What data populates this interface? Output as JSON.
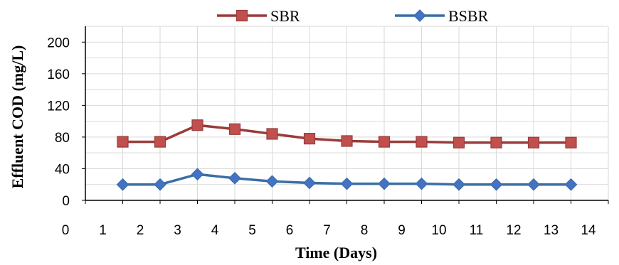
{
  "chart_data": {
    "type": "line",
    "title": "",
    "xlabel": "Time (Days)",
    "ylabel": "Effluent COD (mg/L)",
    "xlim": [
      0,
      14
    ],
    "ylim": [
      0,
      220
    ],
    "x_ticks": [
      0,
      1,
      2,
      3,
      4,
      5,
      6,
      7,
      8,
      9,
      10,
      11,
      12,
      13,
      14
    ],
    "y_ticks": [
      0,
      40,
      80,
      120,
      160,
      200
    ],
    "grid": true,
    "legend_position": "top",
    "x": [
      1,
      2,
      3,
      4,
      5,
      6,
      7,
      8,
      9,
      10,
      11,
      12,
      13
    ],
    "series": [
      {
        "name": "SBR",
        "color": "#9b3a3a",
        "marker_color": "#c0504d",
        "marker": "square",
        "values": [
          74,
          74,
          95,
          90,
          84,
          78,
          75,
          74,
          74,
          73,
          73,
          73,
          73
        ]
      },
      {
        "name": "BSBR",
        "color": "#3a6ea5",
        "marker_color": "#4472c4",
        "marker": "diamond",
        "values": [
          20,
          20,
          33,
          28,
          24,
          22,
          21,
          21,
          21,
          20,
          20,
          20,
          20
        ]
      }
    ]
  }
}
